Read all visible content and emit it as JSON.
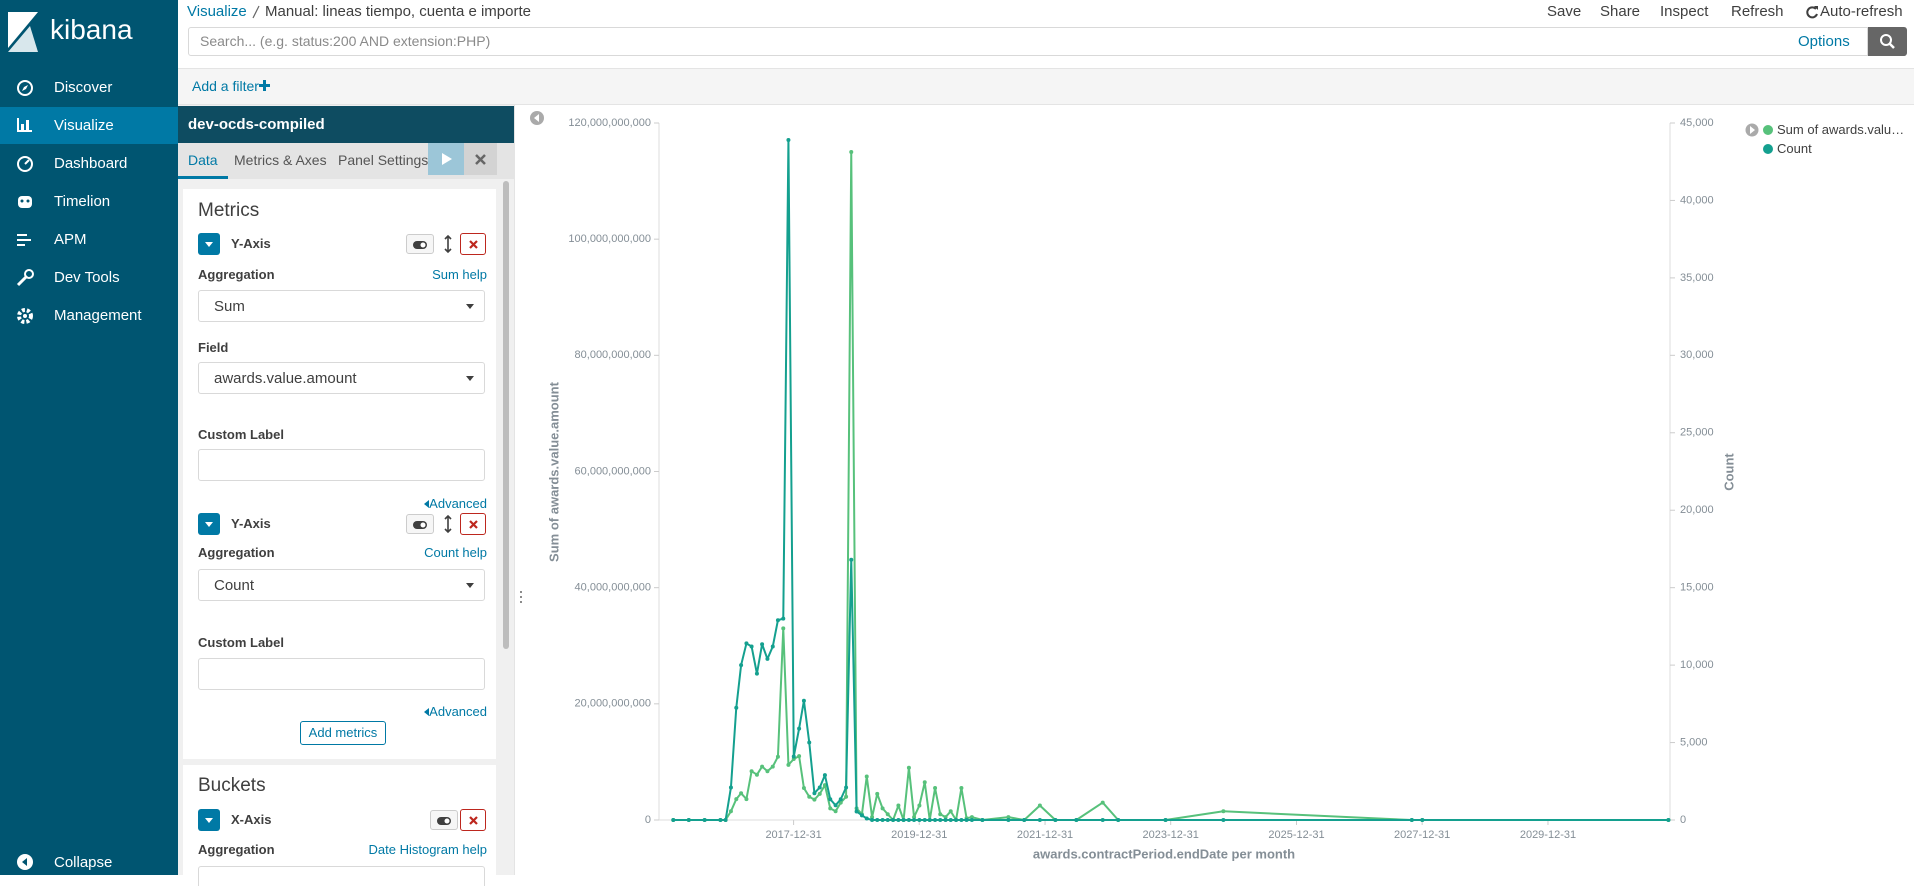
{
  "nav": {
    "brand": "kibana",
    "items": [
      "Discover",
      "Visualize",
      "Dashboard",
      "Timelion",
      "APM",
      "Dev Tools",
      "Management"
    ],
    "collapse": "Collapse"
  },
  "header": {
    "breadcrumb": [
      "Visualize",
      "Manual: lineas tiempo, cuenta e importe"
    ],
    "actions": [
      "Save",
      "Share",
      "Inspect",
      "Refresh",
      "Auto-refresh"
    ],
    "search_placeholder": "Search... (e.g. status:200 AND extension:PHP)",
    "options": "Options",
    "add_filter": "Add a filter"
  },
  "editor": {
    "index": "dev-ocds-compiled",
    "tabs": [
      "Data",
      "Metrics & Axes",
      "Panel Settings"
    ],
    "metrics_title": "Metrics",
    "metrics": [
      {
        "axis": "Y-Axis",
        "aggregation_label": "Aggregation",
        "help": "Sum help",
        "aggregation": "Sum",
        "field_label": "Field",
        "field": "awards.value.amount",
        "custom_label": "Custom Label",
        "advanced": "Advanced"
      },
      {
        "axis": "Y-Axis",
        "aggregation_label": "Aggregation",
        "help": "Count help",
        "aggregation": "Count",
        "custom_label": "Custom Label",
        "advanced": "Advanced"
      }
    ],
    "add_metrics": "Add metrics",
    "buckets_title": "Buckets",
    "bucket": {
      "axis": "X-Axis",
      "aggregation_label": "Aggregation",
      "help": "Date Histogram help"
    }
  },
  "chart_data": {
    "type": "line",
    "y_label": "Sum of awards.value.amount",
    "y2_label": "Count",
    "x_label": "awards.contractPeriod.endDate per month",
    "legend": "right",
    "x": [
      "2016-02-01",
      "2016-05-01",
      "2016-08-01",
      "2016-11-01",
      "2016-12-01",
      "2017-01-01",
      "2017-02-01",
      "2017-03-01",
      "2017-04-01",
      "2017-05-01",
      "2017-06-01",
      "2017-07-01",
      "2017-08-01",
      "2017-09-01",
      "2017-10-01",
      "2017-11-01",
      "2017-12-01",
      "2018-01-01",
      "2018-02-01",
      "2018-03-01",
      "2018-04-01",
      "2018-05-01",
      "2018-06-01",
      "2018-07-01",
      "2018-08-01",
      "2018-09-01",
      "2018-10-01",
      "2018-11-01",
      "2018-12-01",
      "2019-01-01",
      "2019-02-01",
      "2019-03-01",
      "2019-04-01",
      "2019-05-01",
      "2019-06-01",
      "2019-07-01",
      "2019-08-01",
      "2019-09-01",
      "2019-10-01",
      "2019-11-01",
      "2019-12-01",
      "2020-01-01",
      "2020-02-01",
      "2020-03-01",
      "2020-04-01",
      "2020-05-01",
      "2020-06-01",
      "2020-07-01",
      "2020-08-01",
      "2020-09-01",
      "2020-10-01",
      "2020-11-01",
      "2021-01-01",
      "2021-06-01",
      "2021-09-01",
      "2021-12-01",
      "2022-03-01",
      "2022-07-01",
      "2022-12-01",
      "2023-03-01",
      "2023-12-01",
      "2024-11-01",
      "2027-11-01",
      "2028-01-01",
      "2031-12-01"
    ],
    "series": [
      {
        "name": "Sum of awards.value.amount",
        "color": "#57c17b",
        "values": [
          0,
          0,
          0,
          0,
          0,
          1500000000,
          3600000000,
          4600000000,
          3600000000,
          8400000000,
          7800000000,
          9200000000,
          8400000000,
          9200000000,
          10900000000,
          33000000000,
          9500000000,
          10500000000,
          11000000000,
          5500000000,
          4000000000,
          3500000000,
          4500000000,
          6000000000,
          2000000000,
          1500000000,
          3000000000,
          4000000000,
          115000000000,
          2000000000,
          1000000000,
          7500000000,
          500000000,
          4500000000,
          2000000000,
          1000000000,
          0,
          2500000000,
          0,
          9000000000,
          500000000,
          2500000000,
          6500000000,
          0,
          5500000000,
          1000000000,
          500000000,
          1500000000,
          0,
          5500000000,
          300000000,
          500000000,
          0,
          500000000,
          0,
          2500000000,
          0,
          0,
          3000000000,
          0,
          0,
          1500000000,
          0,
          0,
          0
        ]
      },
      {
        "name": "Count",
        "color": "#14a08f",
        "axis": "y2",
        "values": [
          0,
          0,
          0,
          0,
          0,
          2100,
          7250,
          10000,
          11400,
          11200,
          9450,
          11350,
          10400,
          11200,
          12900,
          13000,
          43900,
          4100,
          5900,
          7700,
          5000,
          1730,
          2100,
          2900,
          1340,
          950,
          1340,
          2100,
          16800,
          550,
          300,
          100,
          0,
          0,
          0,
          0,
          0,
          0,
          0,
          0,
          0,
          0,
          0,
          0,
          0,
          0,
          0,
          0,
          0,
          0,
          0,
          0,
          0,
          0,
          0,
          0,
          0,
          0,
          0,
          0,
          0,
          0,
          0,
          0,
          0
        ]
      }
    ],
    "xlim": [
      "2015-11-10",
      "2031-12-10"
    ],
    "xticks": [
      "2017-12-31",
      "2019-12-31",
      "2021-12-31",
      "2023-12-31",
      "2025-12-31",
      "2027-12-31",
      "2029-12-31"
    ],
    "ylim": [
      0,
      120000000000
    ],
    "yticks": [
      0,
      {
        "value": 20000000000,
        "label": "20,000,000,000"
      },
      {
        "value": 40000000000,
        "label": "40,000,000,000"
      },
      {
        "value": 60000000000,
        "label": "60,000,000,000"
      },
      {
        "value": 80000000000,
        "label": "80,000,000,000"
      },
      {
        "value": 100000000000,
        "label": "100,000,000,000"
      },
      {
        "value": 120000000000,
        "label": "120,000,000,000"
      }
    ],
    "y2lim": [
      0,
      45000
    ],
    "y2ticks": [
      0,
      {
        "value": 5000,
        "label": "5,000"
      },
      {
        "value": 10000,
        "label": "10,000"
      },
      {
        "value": 15000,
        "label": "15,000"
      },
      {
        "value": 20000,
        "label": "20,000"
      },
      {
        "value": 25000,
        "label": "25,000"
      },
      {
        "value": 30000,
        "label": "30,000"
      },
      {
        "value": 35000,
        "label": "35,000"
      },
      {
        "value": 40000,
        "label": "40,000"
      },
      {
        "value": 45000,
        "label": "45,000"
      }
    ]
  }
}
